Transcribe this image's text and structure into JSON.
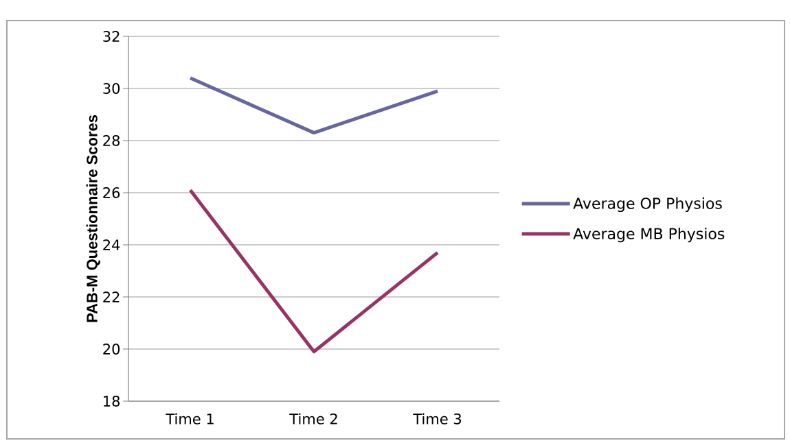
{
  "chart_data": {
    "type": "line",
    "ylabel": "PAB-M Questionnaire Scores",
    "categories": [
      "Time 1",
      "Time 2",
      "Time 3"
    ],
    "series": [
      {
        "name": "Average OP Physios",
        "color": "#6666a0",
        "values": [
          30.4,
          28.3,
          29.9
        ]
      },
      {
        "name": "Average MB Physios",
        "color": "#993366",
        "values": [
          26.1,
          19.9,
          23.7
        ]
      }
    ],
    "ylim": [
      18,
      32
    ],
    "yticks": [
      18,
      20,
      22,
      24,
      26,
      28,
      30,
      32
    ],
    "grid": "y",
    "legend": "right",
    "marker": "none",
    "line_style": "solid"
  }
}
